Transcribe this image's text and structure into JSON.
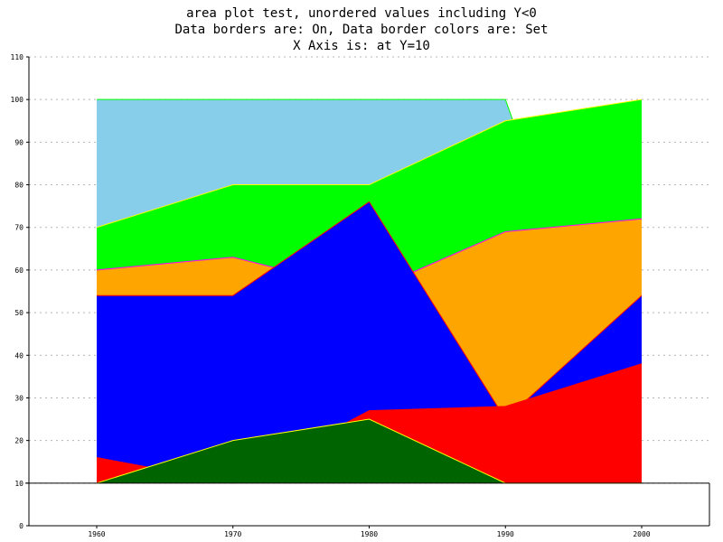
{
  "chart_data": {
    "type": "area",
    "title_lines": [
      "area plot test, unordered values including Y<0",
      "Data borders are: On, Data border colors are: Set",
      "X Axis is: at Y=10"
    ],
    "xlabel": "",
    "ylabel": "",
    "x": [
      1960,
      1970,
      1980,
      1990,
      2000
    ],
    "x_tick_labels": [
      "1960",
      "1970",
      "1980",
      "1990",
      "2000"
    ],
    "ylim": [
      0,
      110
    ],
    "y_ticks": [
      0,
      10,
      20,
      30,
      40,
      50,
      60,
      70,
      80,
      90,
      100,
      110
    ],
    "y_tick_labels": [
      "0",
      "10",
      "20",
      "30",
      "40",
      "50",
      "60",
      "70",
      "80",
      "90",
      "100",
      "110"
    ],
    "x_axis_at_y": 10,
    "grid": "horizontal dashed",
    "data_borders": "on",
    "series": [
      {
        "values": [
          100,
          100,
          100,
          100,
          10
        ],
        "color": "#87ceeb",
        "border": "#00ff00"
      },
      {
        "values": [
          70,
          80,
          80,
          95,
          100
        ],
        "color": "#00ff00",
        "border": "#ffff00"
      },
      {
        "values": [
          60,
          63,
          55,
          69,
          72
        ],
        "color": "#ffa500",
        "border": "#ff00ff"
      },
      {
        "values": [
          54,
          54,
          76,
          25,
          54
        ],
        "color": "#0000ff",
        "border": "#ff0000"
      },
      {
        "values": [
          16,
          10,
          27,
          28,
          38
        ],
        "color": "#ff0000",
        "border": "#ff0000"
      },
      {
        "values": [
          10,
          20,
          25,
          10,
          10
        ],
        "color": "#006400",
        "border": "#ffff00"
      }
    ]
  }
}
